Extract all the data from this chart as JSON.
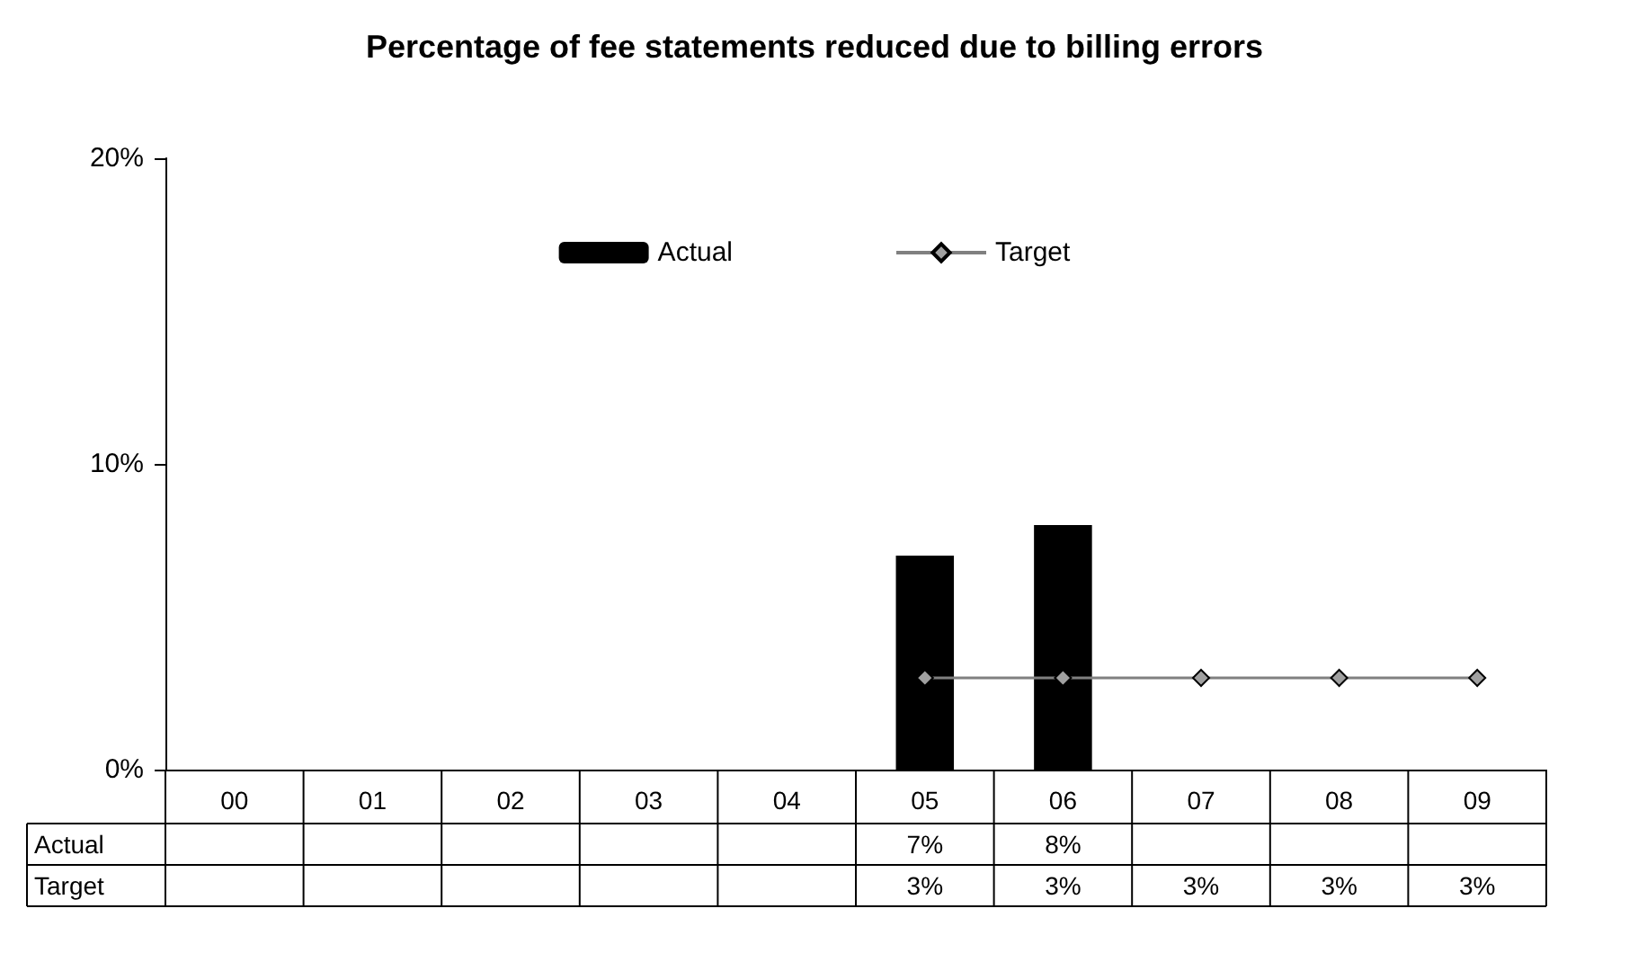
{
  "chart_data": {
    "type": "bar",
    "title": "Percentage of fee statements reduced due to billing errors",
    "categories": [
      "00",
      "01",
      "02",
      "03",
      "04",
      "05",
      "06",
      "07",
      "08",
      "09"
    ],
    "series": [
      {
        "name": "Actual",
        "color": "#000000",
        "values": [
          null,
          null,
          null,
          null,
          null,
          7,
          8,
          null,
          null,
          null
        ],
        "value_labels": [
          null,
          null,
          null,
          null,
          null,
          "7%",
          "8%",
          null,
          null,
          null
        ]
      },
      {
        "name": "Target",
        "type": "line",
        "color": "#808080",
        "marker": "diamond",
        "values": [
          null,
          null,
          null,
          null,
          null,
          3,
          3,
          3,
          3,
          3
        ],
        "value_labels": [
          null,
          null,
          null,
          null,
          null,
          "3%",
          "3%",
          "3%",
          "3%",
          "3%"
        ]
      }
    ],
    "ylim": [
      0,
      20
    ],
    "yticks": [
      {
        "value": 0,
        "label": "0%"
      },
      {
        "value": 10,
        "label": "10%"
      },
      {
        "value": 20,
        "label": "20%"
      }
    ],
    "grid": false,
    "legend": "top"
  }
}
